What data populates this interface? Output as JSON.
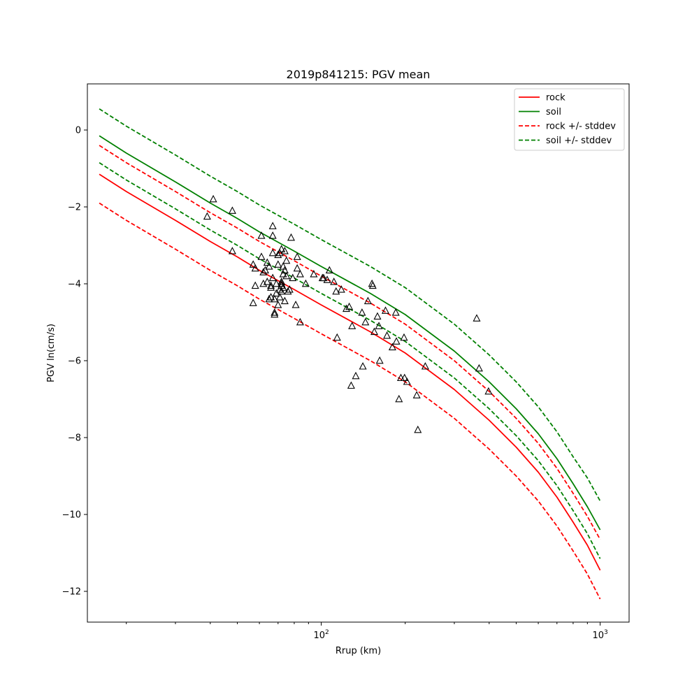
{
  "chart_data": {
    "type": "line",
    "title": "2019p841215: PGV mean",
    "xlabel": "Rrup (km)",
    "ylabel": "PGV ln(cm/s)",
    "xscale": "log",
    "xlim": [
      14.5,
      1270
    ],
    "ylim": [
      -12.8,
      1.2
    ],
    "x_ticks": [
      {
        "value": 100,
        "label": "10",
        "exp": "2"
      },
      {
        "value": 1000,
        "label": "10",
        "exp": "3"
      }
    ],
    "y_ticks": [
      {
        "value": 0,
        "label": "0"
      },
      {
        "value": -2,
        "label": "−2"
      },
      {
        "value": -4,
        "label": "−4"
      },
      {
        "value": -6,
        "label": "−6"
      },
      {
        "value": -8,
        "label": "−8"
      },
      {
        "value": -10,
        "label": "−10"
      },
      {
        "value": -12,
        "label": "−12"
      }
    ],
    "grid": false,
    "legend_position": "top-right",
    "series": [
      {
        "name": "rock",
        "color": "#ff0000",
        "style": "solid",
        "points": [
          [
            16,
            -1.15
          ],
          [
            20,
            -1.6
          ],
          [
            30,
            -2.35
          ],
          [
            40,
            -2.9
          ],
          [
            50,
            -3.3
          ],
          [
            60,
            -3.65
          ],
          [
            80,
            -4.15
          ],
          [
            100,
            -4.55
          ],
          [
            150,
            -5.25
          ],
          [
            200,
            -5.8
          ],
          [
            300,
            -6.75
          ],
          [
            400,
            -7.55
          ],
          [
            500,
            -8.25
          ],
          [
            600,
            -8.9
          ],
          [
            700,
            -9.55
          ],
          [
            800,
            -10.2
          ],
          [
            900,
            -10.8
          ],
          [
            1000,
            -11.45
          ]
        ]
      },
      {
        "name": "soil",
        "color": "#008000",
        "style": "solid",
        "points": [
          [
            16,
            -0.15
          ],
          [
            20,
            -0.6
          ],
          [
            30,
            -1.35
          ],
          [
            40,
            -1.9
          ],
          [
            50,
            -2.3
          ],
          [
            60,
            -2.65
          ],
          [
            80,
            -3.15
          ],
          [
            100,
            -3.55
          ],
          [
            150,
            -4.25
          ],
          [
            200,
            -4.8
          ],
          [
            300,
            -5.75
          ],
          [
            400,
            -6.55
          ],
          [
            500,
            -7.25
          ],
          [
            600,
            -7.9
          ],
          [
            700,
            -8.55
          ],
          [
            800,
            -9.2
          ],
          [
            900,
            -9.8
          ],
          [
            1000,
            -10.4
          ]
        ]
      },
      {
        "name": "rock +/- stddev",
        "color": "#ff0000",
        "style": "dashed",
        "points": [
          [
            16,
            -0.4
          ],
          [
            20,
            -0.85
          ],
          [
            30,
            -1.6
          ],
          [
            40,
            -2.15
          ],
          [
            50,
            -2.55
          ],
          [
            60,
            -2.9
          ],
          [
            80,
            -3.4
          ],
          [
            100,
            -3.8
          ],
          [
            150,
            -4.5
          ],
          [
            200,
            -5.05
          ],
          [
            300,
            -6.0
          ],
          [
            400,
            -6.8
          ],
          [
            500,
            -7.5
          ],
          [
            600,
            -8.15
          ],
          [
            700,
            -8.8
          ],
          [
            800,
            -9.45
          ],
          [
            900,
            -10.05
          ],
          [
            1000,
            -10.65
          ]
        ]
      },
      {
        "name": "",
        "color": "#ff0000",
        "style": "dashed",
        "points": [
          [
            16,
            -1.9
          ],
          [
            20,
            -2.35
          ],
          [
            30,
            -3.1
          ],
          [
            40,
            -3.65
          ],
          [
            50,
            -4.05
          ],
          [
            60,
            -4.4
          ],
          [
            80,
            -4.9
          ],
          [
            100,
            -5.3
          ],
          [
            150,
            -6.0
          ],
          [
            200,
            -6.55
          ],
          [
            300,
            -7.5
          ],
          [
            400,
            -8.3
          ],
          [
            500,
            -9.0
          ],
          [
            600,
            -9.65
          ],
          [
            700,
            -10.3
          ],
          [
            800,
            -10.95
          ],
          [
            900,
            -11.55
          ],
          [
            1000,
            -12.2
          ]
        ]
      },
      {
        "name": "soil +/- stddev",
        "color": "#008000",
        "style": "dashed",
        "points": [
          [
            16,
            0.55
          ],
          [
            20,
            0.1
          ],
          [
            30,
            -0.65
          ],
          [
            40,
            -1.2
          ],
          [
            50,
            -1.6
          ],
          [
            60,
            -1.95
          ],
          [
            80,
            -2.45
          ],
          [
            100,
            -2.85
          ],
          [
            150,
            -3.55
          ],
          [
            200,
            -4.1
          ],
          [
            300,
            -5.05
          ],
          [
            400,
            -5.85
          ],
          [
            500,
            -6.55
          ],
          [
            600,
            -7.2
          ],
          [
            700,
            -7.85
          ],
          [
            800,
            -8.5
          ],
          [
            900,
            -9.05
          ],
          [
            1000,
            -9.65
          ]
        ]
      },
      {
        "name": "",
        "color": "#008000",
        "style": "dashed",
        "points": [
          [
            16,
            -0.85
          ],
          [
            20,
            -1.3
          ],
          [
            30,
            -2.05
          ],
          [
            40,
            -2.6
          ],
          [
            50,
            -3.0
          ],
          [
            60,
            -3.35
          ],
          [
            80,
            -3.85
          ],
          [
            100,
            -4.25
          ],
          [
            150,
            -4.95
          ],
          [
            200,
            -5.5
          ],
          [
            300,
            -6.45
          ],
          [
            400,
            -7.25
          ],
          [
            500,
            -7.95
          ],
          [
            600,
            -8.6
          ],
          [
            700,
            -9.25
          ],
          [
            800,
            -9.9
          ],
          [
            900,
            -10.5
          ],
          [
            1000,
            -11.15
          ]
        ]
      }
    ],
    "observations": {
      "marker": "triangle",
      "color": "#000000",
      "points": [
        [
          41,
          -1.8
        ],
        [
          39,
          -2.25
        ],
        [
          48,
          -2.1
        ],
        [
          48,
          -3.15
        ],
        [
          57,
          -3.5
        ],
        [
          57,
          -4.5
        ],
        [
          58,
          -3.6
        ],
        [
          58,
          -4.05
        ],
        [
          61,
          -3.3
        ],
        [
          61,
          -2.75
        ],
        [
          62,
          -3.7
        ],
        [
          62,
          -4.0
        ],
        [
          63,
          -3.65
        ],
        [
          64,
          -3.45
        ],
        [
          64,
          -3.95
        ],
        [
          65,
          -4.4
        ],
        [
          65,
          -3.55
        ],
        [
          66,
          -4.1
        ],
        [
          66,
          -4.05
        ],
        [
          66,
          -4.35
        ],
        [
          67,
          -3.2
        ],
        [
          67,
          -2.5
        ],
        [
          67,
          -2.75
        ],
        [
          67,
          -3.85
        ],
        [
          68,
          -4.8
        ],
        [
          68,
          -4.4
        ],
        [
          68,
          -4.75
        ],
        [
          69,
          -4.25
        ],
        [
          69,
          -4.0
        ],
        [
          70,
          -3.5
        ],
        [
          70,
          -3.25
        ],
        [
          70,
          -4.55
        ],
        [
          71,
          -3.2
        ],
        [
          71,
          -4.35
        ],
        [
          71,
          -4.15
        ],
        [
          72,
          -4.05
        ],
        [
          72,
          -4.0
        ],
        [
          72,
          -3.95
        ],
        [
          72,
          -3.1
        ],
        [
          72,
          -4.2
        ],
        [
          73,
          -3.55
        ],
        [
          73,
          -4.1
        ],
        [
          73,
          -3.75
        ],
        [
          74,
          -3.15
        ],
        [
          74,
          -3.65
        ],
        [
          74,
          -4.45
        ],
        [
          75,
          -3.4
        ],
        [
          75,
          -3.8
        ],
        [
          76,
          -4.2
        ],
        [
          77,
          -4.15
        ],
        [
          78,
          -2.8
        ],
        [
          79,
          -3.85
        ],
        [
          81,
          -4.55
        ],
        [
          82,
          -3.6
        ],
        [
          82,
          -3.3
        ],
        [
          84,
          -5.0
        ],
        [
          84,
          -3.75
        ],
        [
          88,
          -4.0
        ],
        [
          94,
          -3.75
        ],
        [
          101,
          -3.85
        ],
        [
          102,
          -3.85
        ],
        [
          105,
          -3.9
        ],
        [
          107,
          -3.65
        ],
        [
          111,
          -3.95
        ],
        [
          113,
          -4.2
        ],
        [
          114,
          -5.4
        ],
        [
          118,
          -4.15
        ],
        [
          123,
          -4.65
        ],
        [
          126,
          -4.6
        ],
        [
          128,
          -6.65
        ],
        [
          129,
          -5.1
        ],
        [
          133,
          -6.4
        ],
        [
          140,
          -4.75
        ],
        [
          141,
          -6.15
        ],
        [
          144,
          -5.0
        ],
        [
          147,
          -4.45
        ],
        [
          152,
          -4.0
        ],
        [
          153,
          -4.05
        ],
        [
          155,
          -5.25
        ],
        [
          159,
          -4.85
        ],
        [
          161,
          -5.1
        ],
        [
          162,
          -6.0
        ],
        [
          170,
          -4.7
        ],
        [
          172,
          -5.35
        ],
        [
          180,
          -5.65
        ],
        [
          185,
          -4.75
        ],
        [
          186,
          -5.5
        ],
        [
          190,
          -7.0
        ],
        [
          193,
          -6.45
        ],
        [
          198,
          -5.4
        ],
        [
          199,
          -6.45
        ],
        [
          203,
          -6.55
        ],
        [
          220,
          -6.9
        ],
        [
          222,
          -7.8
        ],
        [
          236,
          -6.15
        ],
        [
          361,
          -4.9
        ],
        [
          368,
          -6.2
        ],
        [
          398,
          -6.8
        ]
      ]
    }
  }
}
